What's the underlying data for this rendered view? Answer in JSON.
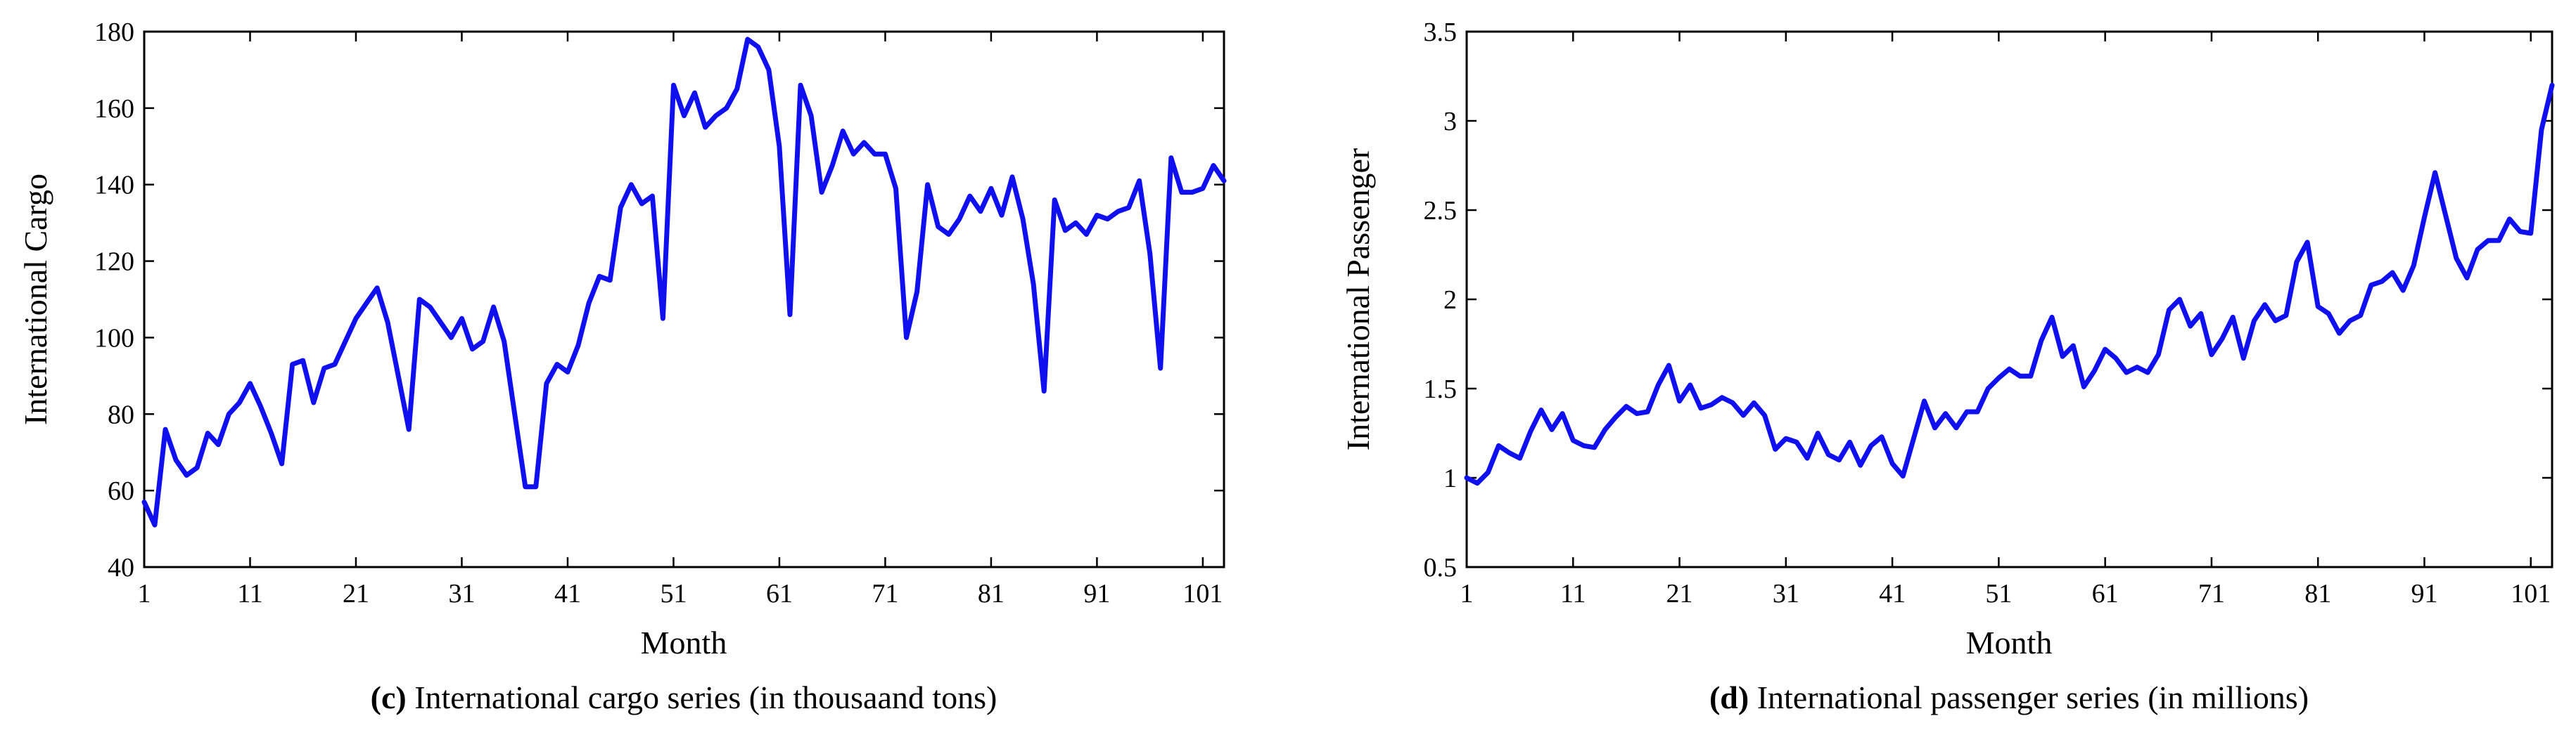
{
  "chart_data": [
    {
      "type": "line",
      "id": "c",
      "caption_letter": "(c)",
      "caption_text": " International cargo series (in thousaand tons)",
      "xlabel": "Month",
      "ylabel": "International Cargo",
      "xlim": [
        1,
        103
      ],
      "ylim": [
        40,
        180
      ],
      "xticks": [
        1,
        11,
        21,
        31,
        41,
        51,
        61,
        71,
        81,
        91,
        101
      ],
      "yticks": [
        40,
        60,
        80,
        100,
        120,
        140,
        160,
        180
      ],
      "ytick_labels": [
        "40",
        "60",
        "80",
        "100",
        "120",
        "140",
        "160",
        "180"
      ],
      "color": "#1010ee",
      "series": [
        {
          "name": "International Cargo",
          "values": [
            57,
            51,
            76,
            68,
            64,
            66,
            75,
            72,
            80,
            83,
            88,
            82,
            75,
            67,
            93,
            94,
            83,
            92,
            93,
            99,
            105,
            109,
            113,
            104,
            90,
            76,
            110,
            108,
            104,
            100,
            105,
            97,
            99,
            108,
            99,
            80,
            61,
            61,
            88,
            93,
            91,
            98,
            109,
            116,
            115,
            134,
            140,
            135,
            137,
            105,
            166,
            158,
            164,
            155,
            158,
            160,
            165,
            178,
            176,
            170,
            150,
            106,
            166,
            158,
            138,
            145,
            154,
            148,
            151,
            148,
            148,
            139,
            100,
            112,
            140,
            129,
            127,
            131,
            137,
            133,
            139,
            132,
            142,
            131,
            114,
            86,
            136,
            128,
            130,
            127,
            132,
            131,
            133,
            134,
            141,
            122,
            92,
            147,
            138,
            138,
            139,
            145,
            141
          ]
        }
      ]
    },
    {
      "type": "line",
      "id": "d",
      "caption_letter": "(d)",
      "caption_text": " International passenger series (in millions)",
      "xlabel": "Month",
      "ylabel": "International Passenger",
      "xlim": [
        1,
        103
      ],
      "ylim": [
        0.5,
        3.5
      ],
      "xticks": [
        1,
        11,
        21,
        31,
        41,
        51,
        61,
        71,
        81,
        91,
        101
      ],
      "yticks": [
        0.5,
        1,
        1.5,
        2,
        2.5,
        3,
        3.5
      ],
      "ytick_labels": [
        "0.5",
        "1",
        "1.5",
        "2",
        "2.5",
        "3",
        "3.5"
      ],
      "color": "#1010ee",
      "series": [
        {
          "name": "International Passenger",
          "values": [
            1.0,
            0.97,
            1.03,
            1.18,
            1.14,
            1.11,
            1.26,
            1.38,
            1.27,
            1.36,
            1.21,
            1.18,
            1.17,
            1.27,
            1.34,
            1.4,
            1.36,
            1.37,
            1.52,
            1.63,
            1.43,
            1.52,
            1.39,
            1.41,
            1.45,
            1.42,
            1.35,
            1.42,
            1.35,
            1.16,
            1.22,
            1.2,
            1.11,
            1.25,
            1.13,
            1.1,
            1.2,
            1.07,
            1.18,
            1.23,
            1.08,
            1.01,
            1.22,
            1.43,
            1.28,
            1.36,
            1.28,
            1.37,
            1.37,
            1.5,
            1.56,
            1.61,
            1.57,
            1.57,
            1.77,
            1.9,
            1.68,
            1.74,
            1.51,
            1.6,
            1.72,
            1.67,
            1.59,
            1.62,
            1.59,
            1.69,
            1.94,
            2.0,
            1.85,
            1.92,
            1.69,
            1.78,
            1.9,
            1.67,
            1.88,
            1.97,
            1.88,
            1.91,
            2.21,
            2.32,
            1.96,
            1.92,
            1.81,
            1.88,
            1.91,
            2.08,
            2.1,
            2.15,
            2.05,
            2.19,
            2.46,
            2.71,
            2.47,
            2.23,
            2.12,
            2.28,
            2.33,
            2.33,
            2.45,
            2.38,
            2.37,
            2.95,
            3.2
          ]
        }
      ]
    }
  ]
}
